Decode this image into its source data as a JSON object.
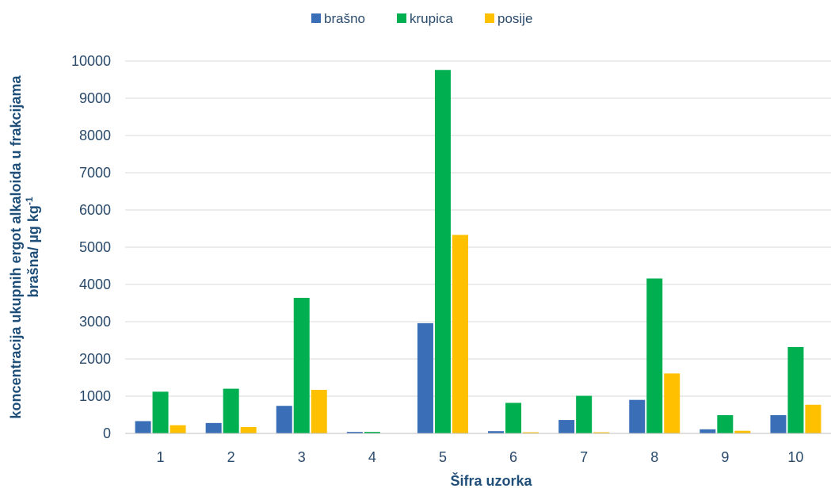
{
  "chart_data": {
    "type": "bar",
    "categories": [
      "1",
      "2",
      "3",
      "4",
      "5",
      "6",
      "7",
      "8",
      "9",
      "10"
    ],
    "series": [
      {
        "name": "brašno",
        "color": "#3a6fb8",
        "values": [
          330,
          280,
          740,
          40,
          2960,
          60,
          360,
          900,
          110,
          490
        ]
      },
      {
        "name": "krupica",
        "color": "#00b050",
        "values": [
          1120,
          1200,
          3640,
          40,
          9760,
          820,
          1010,
          4160,
          490,
          2320
        ]
      },
      {
        "name": "posije",
        "color": "#ffc000",
        "values": [
          220,
          170,
          1170,
          0,
          5330,
          30,
          30,
          1610,
          70,
          770
        ]
      }
    ],
    "xlabel": "Šifra uzorka",
    "ylabel_line1": "koncentracija ukupnih ergot alkaloida u frakcijama",
    "ylabel_line2": "brašna/ µg kg",
    "ylabel_sup": "-1",
    "ylim": [
      0,
      10000
    ],
    "yticks": [
      "0",
      "1000",
      "2000",
      "3000",
      "4000",
      "5000",
      "6000",
      "7000",
      "8000",
      "9000",
      "10000"
    ],
    "grid": true,
    "legend_position": "top"
  }
}
